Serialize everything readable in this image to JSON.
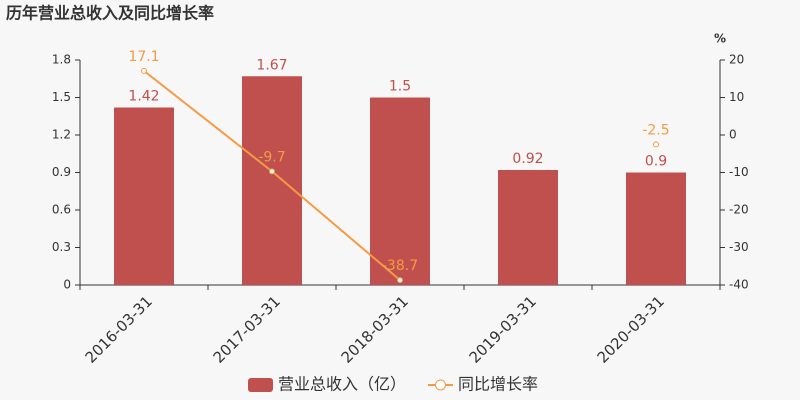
{
  "chart_data": {
    "type": "bar-line",
    "title": "历年营业总收入及同比增长率",
    "categories": [
      "2016-03-31",
      "2017-03-31",
      "2018-03-31",
      "2019-03-31",
      "2020-03-31"
    ],
    "series": [
      {
        "name": "营业总收入（亿）",
        "type": "bar",
        "color": "#c0504d",
        "values": [
          1.42,
          1.67,
          1.5,
          0.92,
          0.9
        ]
      },
      {
        "name": "同比增长率",
        "type": "line",
        "axis": "y2",
        "color": "#f59a45",
        "values": [
          17.1,
          -9.7,
          -38.7,
          null,
          -2.5
        ]
      }
    ],
    "ylim": [
      0,
      1.8
    ],
    "yticks": [
      0,
      0.3,
      0.6,
      0.9,
      1.2,
      1.5,
      1.8
    ],
    "y2label": "%",
    "y2lim": [
      -40,
      20
    ],
    "y2ticks": [
      -40,
      -30,
      -20,
      -10,
      0,
      10,
      20
    ],
    "legend": "bottom"
  }
}
